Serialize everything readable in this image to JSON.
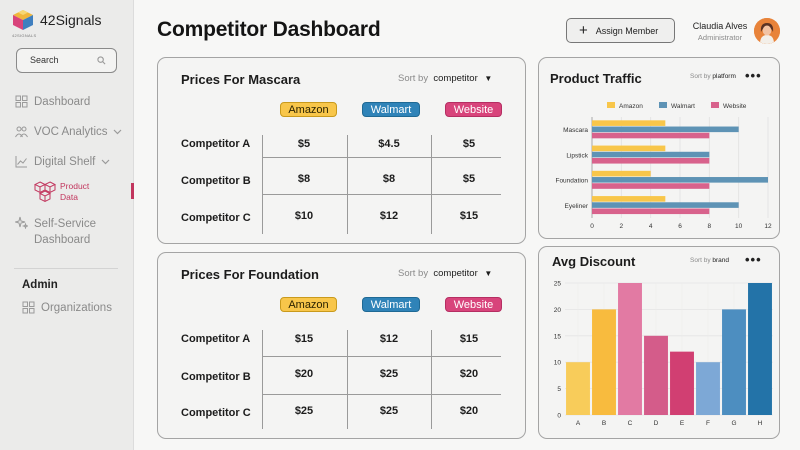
{
  "app": {
    "name": "42Signals",
    "tagline": "42SIGNALS"
  },
  "search": {
    "label": "Search"
  },
  "sidebar": {
    "items": [
      {
        "label": "Dashboard"
      },
      {
        "label": "VOC Analytics"
      },
      {
        "label": "Digital Shelf"
      },
      {
        "label": "Self-Service\nDashboard"
      }
    ],
    "sub_item": {
      "label": "Product\nData"
    },
    "admin_title": "Admin",
    "admin_items": [
      {
        "label": "Organizations"
      }
    ]
  },
  "header": {
    "title": "Competitor Dashboard",
    "assign_label": "Assign Member",
    "user_name": "Claudia Alves",
    "user_role": "Administrator"
  },
  "mascara": {
    "title": "Prices For Mascara",
    "sort_label": "Sort by",
    "sort_value": "competitor",
    "columns": [
      "Amazon",
      "Walmart",
      "Website"
    ],
    "rows": [
      {
        "label": "Competitor A",
        "values": [
          "$5",
          "$4.5",
          "$5"
        ]
      },
      {
        "label": "Competitor B",
        "values": [
          "$8",
          "$8",
          "$5"
        ]
      },
      {
        "label": "Competitor C",
        "values": [
          "$10",
          "$12",
          "$15"
        ]
      }
    ]
  },
  "foundation": {
    "title": "Prices For Foundation",
    "sort_label": "Sort by",
    "sort_value": "competitor",
    "columns": [
      "Amazon",
      "Walmart",
      "Website"
    ],
    "rows": [
      {
        "label": "Competitor A",
        "values": [
          "$15",
          "$12",
          "$15"
        ]
      },
      {
        "label": "Competitor B",
        "values": [
          "$20",
          "$25",
          "$20"
        ]
      },
      {
        "label": "Competitor C",
        "values": [
          "$25",
          "$25",
          "$20"
        ]
      }
    ]
  },
  "traffic": {
    "title": "Product Traffic",
    "sort_label": "Sort by",
    "sort_value": "platform"
  },
  "discount": {
    "title": "Avg Discount",
    "sort_label": "Sort by",
    "sort_value": "brand"
  },
  "colors": {
    "amazon": "#f8c64a",
    "walmart": "#5e93b5",
    "website": "#d8628c",
    "accent": "#c2365e"
  },
  "chart_data": [
    {
      "type": "bar",
      "orientation": "horizontal",
      "categories": [
        "Mascara",
        "Lipstick",
        "Foundation",
        "Eyeliner"
      ],
      "series": [
        {
          "name": "Amazon",
          "values": [
            5,
            5,
            4,
            5
          ]
        },
        {
          "name": "Walmart",
          "values": [
            10,
            8,
            12,
            10
          ]
        },
        {
          "name": "Website",
          "values": [
            8,
            8,
            8,
            8
          ]
        }
      ],
      "xlim": [
        0,
        12
      ],
      "xticks": [
        0,
        2,
        4,
        6,
        8,
        10,
        12
      ],
      "legend": "top",
      "grid": true
    },
    {
      "type": "bar",
      "categories": [
        "A",
        "B",
        "C",
        "D",
        "E",
        "F",
        "G",
        "H"
      ],
      "values": [
        10,
        20,
        25,
        15,
        12,
        10,
        20,
        25
      ],
      "bar_colors": [
        "#f8cc5a",
        "#f8bb3e",
        "#e27aa3",
        "#d45c8a",
        "#d13f72",
        "#7da8d6",
        "#4d8ec0",
        "#2373a8"
      ],
      "ylim": [
        0,
        25
      ],
      "yticks": [
        0,
        5,
        10,
        15,
        20,
        25
      ],
      "grid": true
    }
  ]
}
